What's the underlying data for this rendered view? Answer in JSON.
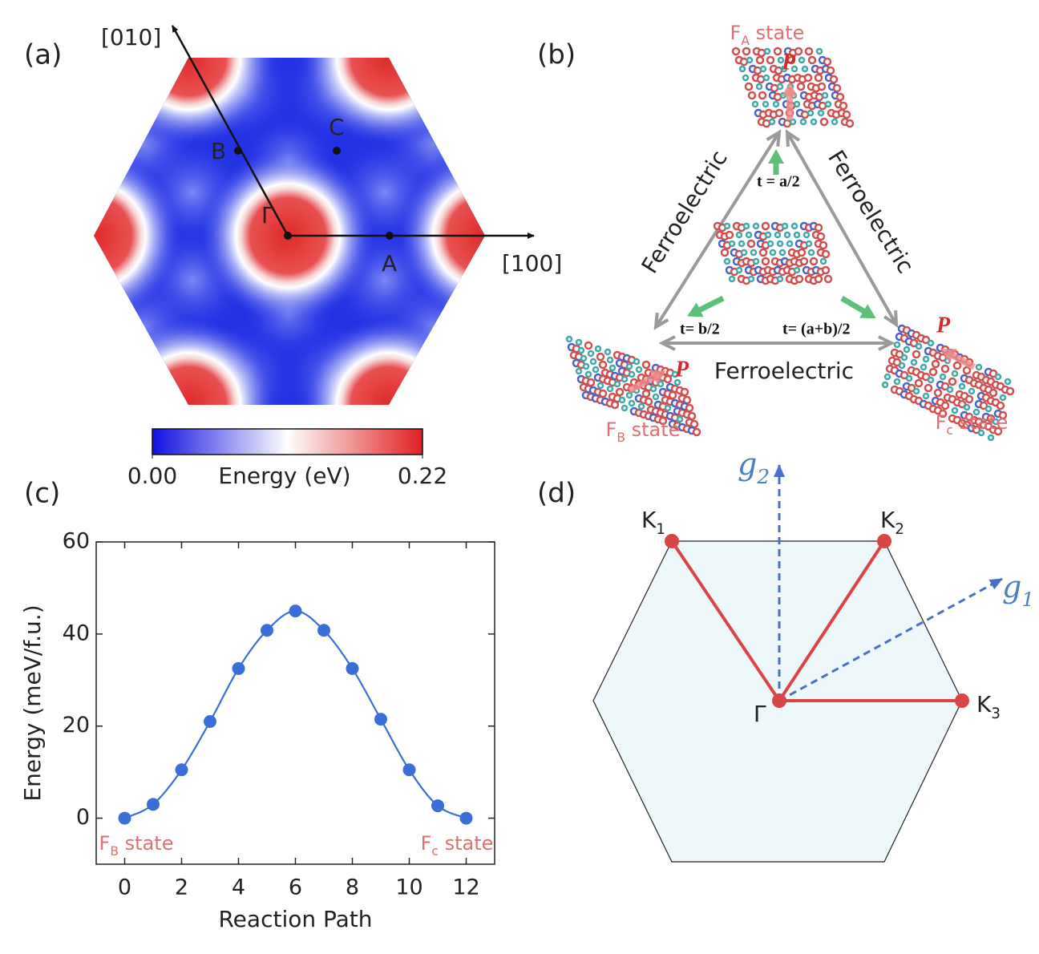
{
  "panels": {
    "a": {
      "label": "(a)",
      "directions": [
        "[010]",
        "[100]"
      ],
      "points": [
        "B",
        "C",
        "Γ",
        "A"
      ],
      "colorbar": {
        "title": "Energy (eV)",
        "ticks": [
          {
            "value": 0,
            "label": "0.00"
          },
          {
            "value": 0.22,
            "label": "0.22"
          }
        ]
      }
    },
    "b": {
      "label": "(b)",
      "states": [
        [
          "F",
          "A",
          " state"
        ],
        [
          "F",
          "B",
          " state"
        ],
        [
          "F",
          "c",
          " state"
        ]
      ],
      "polarization": [
        "P",
        "P",
        "P"
      ],
      "translations": [
        "t = a/2",
        "t= b/2",
        "t= (a+b)/2"
      ],
      "transitions": [
        "Ferroelectric",
        "Ferroelectric",
        "Ferroelectric"
      ]
    },
    "c": {
      "label": "(c)"
    },
    "d": {
      "label": "(d)",
      "vectors": [
        [
          "g",
          "2"
        ],
        [
          "g",
          "1"
        ]
      ],
      "points": [
        [
          "K",
          "1"
        ],
        [
          "K",
          "2"
        ],
        [
          "K",
          "3"
        ]
      ],
      "center": "Γ"
    }
  },
  "chart_data": {
    "type": "line",
    "xlabel": "Reaction Path",
    "ylabel": "Energy (meV/f.u.)",
    "x": [
      0,
      1,
      2,
      3,
      4,
      5,
      6,
      7,
      8,
      9,
      10,
      11,
      12
    ],
    "values": [
      0,
      3,
      10.5,
      21,
      32.5,
      40.8,
      45,
      40.8,
      32.5,
      21.5,
      10.5,
      2.7,
      0
    ],
    "color": "#3a6fd8",
    "xlim": [
      -1,
      13
    ],
    "ylim": [
      -10,
      60
    ],
    "xticks": [
      0,
      2,
      4,
      6,
      8,
      10,
      12
    ],
    "yticks": [
      0,
      20,
      40,
      60
    ],
    "annotations": [
      [
        "F",
        "B",
        " state"
      ],
      [
        "F",
        "c",
        " state"
      ]
    ]
  }
}
